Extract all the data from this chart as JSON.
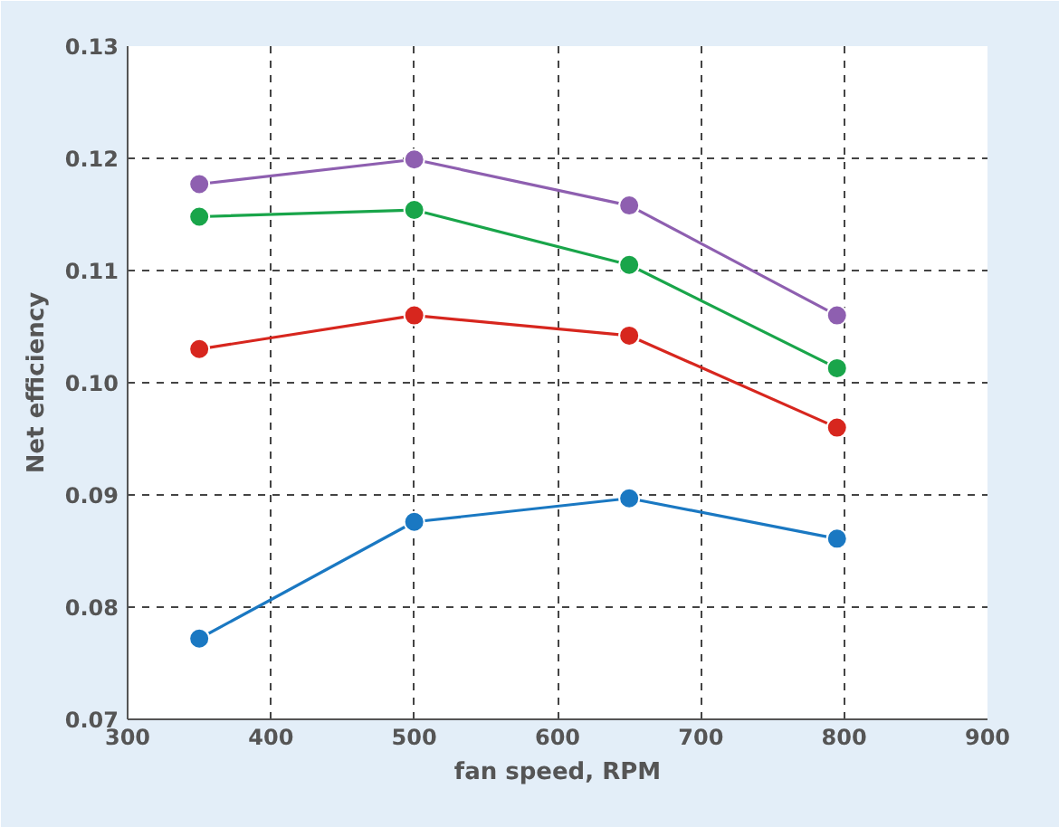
{
  "chart_data": {
    "type": "line",
    "xlabel": "fan speed, RPM",
    "ylabel": "Net efficiency",
    "x": [
      350,
      500,
      650,
      795
    ],
    "series": [
      {
        "color": "#8e5fb0",
        "values": [
          0.1177,
          0.1199,
          0.1158,
          0.106
        ]
      },
      {
        "color": "#19a54a",
        "values": [
          0.1148,
          0.1154,
          0.1105,
          0.1013
        ]
      },
      {
        "color": "#d7261e",
        "values": [
          0.103,
          0.106,
          0.1042,
          0.096
        ]
      },
      {
        "color": "#1a78c2",
        "values": [
          0.0772,
          0.0876,
          0.0897,
          0.0861
        ]
      }
    ],
    "xlim": [
      300,
      900
    ],
    "xticks": [
      300,
      400,
      500,
      600,
      700,
      800,
      900
    ],
    "ylim": [
      0.07,
      0.13
    ],
    "yticks": [
      {
        "value": 0.07,
        "label": "0.07"
      },
      {
        "value": 0.08,
        "label": "0.08"
      },
      {
        "value": 0.09,
        "label": "0.09"
      },
      {
        "value": 0.1,
        "label": "0.10"
      },
      {
        "value": 0.11,
        "label": "0.11"
      },
      {
        "value": 0.12,
        "label": "0.12"
      },
      {
        "value": 0.13,
        "label": "0.13"
      }
    ],
    "grid": true,
    "marker": "circle",
    "line_style": "solid"
  }
}
